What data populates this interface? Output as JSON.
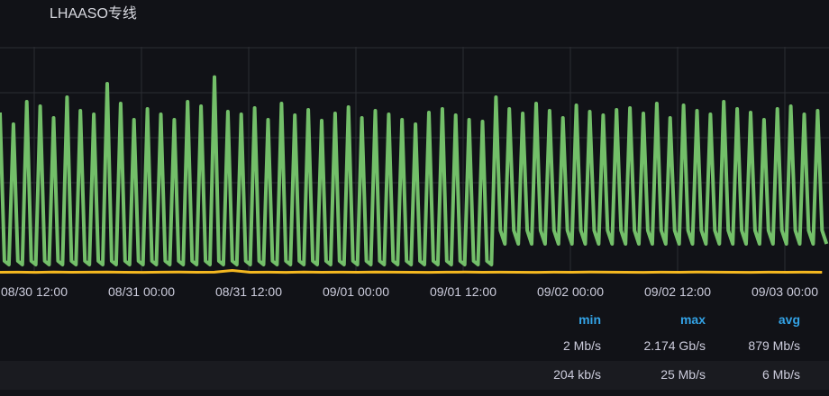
{
  "panel": {
    "title": "LHAASO专线"
  },
  "chart_data": {
    "type": "line",
    "title": "LHAASO专线",
    "x_axis": {
      "ticks": [
        "08/30 12:00",
        "08/31 00:00",
        "08/31 12:00",
        "09/01 00:00",
        "09/01 12:00",
        "09/02 00:00",
        "09/02 12:00",
        "09/03 00:00"
      ],
      "range": [
        "08/30 08:10",
        "09/03 05:00"
      ]
    },
    "y_axis": {
      "unit": "Mb/s",
      "range": [
        0,
        2500
      ],
      "grid_step": 500,
      "labels_visible": false
    },
    "grid": true,
    "series": [
      {
        "color": "#73bf69",
        "start": "08/30 08:10",
        "interval_min": 30,
        "values": [
          1780,
          130,
          90,
          1650,
          130,
          90,
          1900,
          130,
          90,
          1850,
          130,
          90,
          1720,
          130,
          90,
          1950,
          130,
          90,
          1800,
          130,
          90,
          1760,
          130,
          90,
          2100,
          130,
          90,
          1880,
          130,
          90,
          1700,
          130,
          90,
          1820,
          130,
          90,
          1760,
          130,
          90,
          1700,
          130,
          90,
          1900,
          130,
          90,
          1850,
          130,
          90,
          2174,
          130,
          90,
          1790,
          130,
          90,
          1760,
          130,
          90,
          1830,
          130,
          90,
          1700,
          130,
          90,
          1880,
          130,
          90,
          1750,
          130,
          90,
          1810,
          130,
          90,
          1690,
          130,
          90,
          1770,
          130,
          90,
          1840,
          130,
          90,
          1720,
          130,
          90,
          1800,
          130,
          90,
          1760,
          130,
          90,
          1700,
          130,
          90,
          1650,
          130,
          90,
          1780,
          130,
          90,
          1820,
          130,
          90,
          1750,
          130,
          90,
          1700,
          130,
          90,
          1680,
          130,
          90,
          1950,
          470,
          320,
          1820,
          470,
          320,
          1770,
          470,
          320,
          1880,
          470,
          320,
          1800,
          470,
          320,
          1720,
          470,
          320,
          1860,
          470,
          320,
          1790,
          470,
          320,
          1750,
          470,
          320,
          1810,
          470,
          320,
          1830,
          470,
          320,
          1770,
          470,
          320,
          1880,
          470,
          320,
          1720,
          470,
          320,
          1860,
          470,
          320,
          1800,
          470,
          320,
          1760,
          470,
          320,
          1900,
          470,
          320,
          1820,
          470,
          320,
          1780,
          470,
          320,
          1700,
          470,
          320,
          1820,
          470,
          320,
          1850,
          470,
          320,
          1760,
          470,
          320,
          1800,
          470,
          320
        ]
      },
      {
        "color": "#f5b820",
        "start": "08/30 08:10",
        "interval_min": 120,
        "values": [
          5,
          6,
          4,
          7,
          5,
          6,
          8,
          5,
          4,
          6,
          7,
          5,
          6,
          25,
          5,
          6,
          4,
          7,
          5,
          6,
          5,
          8,
          6,
          5,
          4,
          6,
          7,
          5,
          6,
          5,
          4,
          6,
          5,
          7,
          6,
          5,
          4,
          6,
          5,
          7,
          6,
          5,
          4,
          6,
          5,
          6,
          5
        ]
      }
    ]
  },
  "legend": {
    "headers": {
      "min": "min",
      "max": "max",
      "avg": "avg"
    },
    "rows": [
      {
        "min": "2 Mb/s",
        "max": "2.174 Gb/s",
        "avg": "879 Mb/s"
      },
      {
        "min": "204 kb/s",
        "max": "25 Mb/s",
        "avg": "6 Mb/s"
      }
    ]
  }
}
